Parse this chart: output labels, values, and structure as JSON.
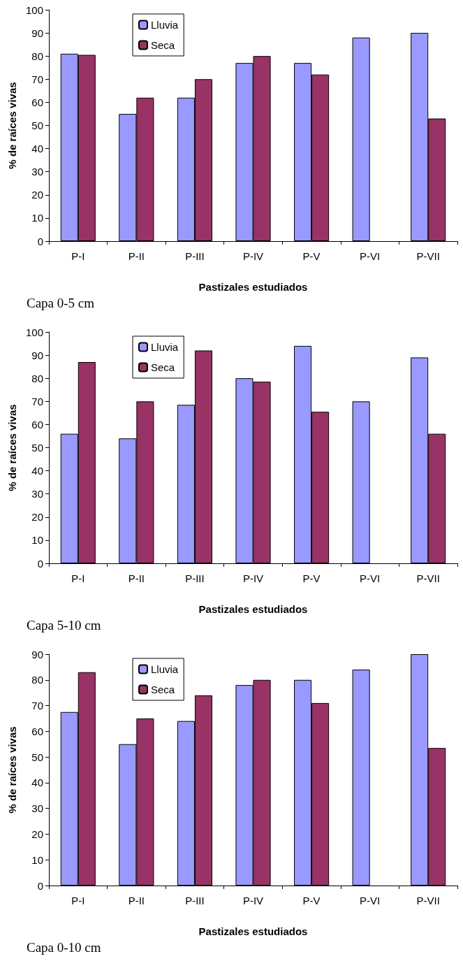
{
  "chart_data": [
    {
      "type": "bar",
      "categories": [
        "P-I",
        "P-II",
        "P-III",
        "P-IV",
        "P-V",
        "P-VI",
        "P-VII"
      ],
      "xlabel": "Pastizales estudiados",
      "ylabel": "% de raíces vivas",
      "ylim": [
        0,
        100
      ],
      "yticks": [
        0,
        10,
        20,
        30,
        40,
        50,
        60,
        70,
        80,
        90,
        100
      ],
      "grid": false,
      "legend": "top left",
      "annotations": [
        "Capa 0-5 cm"
      ],
      "series": [
        {
          "name": "Lluvia",
          "color": "#9999ff",
          "values": [
            81,
            55,
            62,
            77,
            77,
            88,
            90
          ]
        },
        {
          "name": "Seca",
          "color": "#993366",
          "values": [
            80.5,
            62,
            70,
            80,
            72,
            null,
            53
          ]
        }
      ]
    },
    {
      "type": "bar",
      "categories": [
        "P-I",
        "P-II",
        "P-III",
        "P-IV",
        "P-V",
        "P-VI",
        "P-VII"
      ],
      "xlabel": "Pastizales estudiados",
      "ylabel": "% de raíces vivas",
      "ylim": [
        0,
        100
      ],
      "yticks": [
        0,
        10,
        20,
        30,
        40,
        50,
        60,
        70,
        80,
        90,
        100
      ],
      "grid": false,
      "legend": "top left",
      "annotations": [
        "Capa 5-10 cm"
      ],
      "series": [
        {
          "name": "Lluvia",
          "color": "#9999ff",
          "values": [
            56,
            54,
            68.5,
            80,
            94,
            70,
            89
          ]
        },
        {
          "name": "Seca",
          "color": "#993366",
          "values": [
            87,
            70,
            92,
            78.5,
            65.5,
            null,
            56
          ]
        }
      ]
    },
    {
      "type": "bar",
      "categories": [
        "P-I",
        "P-II",
        "P-III",
        "P-IV",
        "P-V",
        "P-VI",
        "P-VII"
      ],
      "xlabel": "Pastizales estudiados",
      "ylabel": "% de raíces vivas",
      "ylim": [
        0,
        90
      ],
      "yticks": [
        0,
        10,
        20,
        30,
        40,
        50,
        60,
        70,
        80,
        90
      ],
      "grid": false,
      "legend": "top left",
      "annotations": [
        "Capa 0-10 cm"
      ],
      "series": [
        {
          "name": "Lluvia",
          "color": "#9999ff",
          "values": [
            67.5,
            55,
            64,
            78,
            80,
            84,
            90
          ]
        },
        {
          "name": "Seca",
          "color": "#993366",
          "values": [
            83,
            65,
            74,
            80,
            71,
            null,
            53.5
          ]
        }
      ]
    }
  ]
}
